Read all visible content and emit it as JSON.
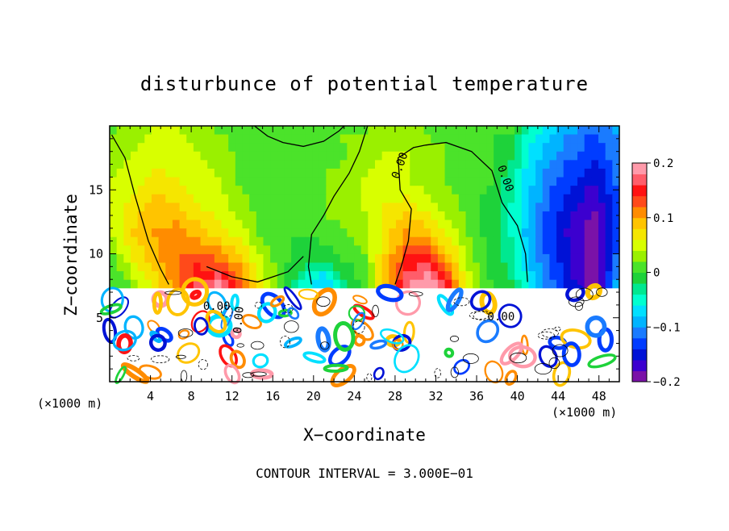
{
  "chart_data": {
    "type": "heatmap",
    "title": "disturbunce of potential temperature",
    "xlabel": "X−coordinate",
    "ylabel": "Z−coordinate",
    "x_unit_left": "(×1000 m)",
    "x_unit_right": "(×1000 m)",
    "footer": "CONTOUR INTERVAL = 3.000E−01",
    "xlim": [
      0,
      50
    ],
    "ylim": [
      0,
      20
    ],
    "x_ticks": [
      4,
      8,
      12,
      16,
      20,
      24,
      28,
      32,
      36,
      40,
      44,
      48
    ],
    "y_ticks": [
      5,
      10,
      15
    ],
    "colorbar": {
      "range": [
        -0.2,
        0.2
      ],
      "tick_labels": [
        "0.2",
        "0.1",
        "0",
        "−0.1",
        "−0.2"
      ],
      "tick_values": [
        0.2,
        0.1,
        0,
        -0.1,
        -0.2
      ],
      "colors": [
        "#7a12a8",
        "#3c00cf",
        "#0012d6",
        "#003cff",
        "#1a7bff",
        "#00b4ff",
        "#00e0ff",
        "#00ffd0",
        "#00e890",
        "#1ed23a",
        "#4be32a",
        "#9af000",
        "#d8ff00",
        "#f5e600",
        "#ffc400",
        "#ff8c00",
        "#ff4a1a",
        "#ff1212",
        "#ff5d6a",
        "#ff9aaa"
      ]
    },
    "contour_labels": [
      "0.00",
      "0.00",
      "0.00",
      "0.00",
      "0.00"
    ],
    "upper_field": [
      [
        0.02,
        0.03,
        0.04,
        0.04,
        0.03,
        0.02,
        0.01,
        0.0,
        0.0,
        0.0,
        0.01,
        0.02,
        0.02,
        0.03,
        0.03,
        0.02,
        0.01,
        0.01,
        0.0,
        0.0,
        -0.05,
        -0.08,
        -0.1,
        -0.12,
        -0.1
      ],
      [
        0.03,
        0.04,
        0.05,
        0.05,
        0.04,
        0.03,
        0.02,
        0.01,
        0.0,
        0.01,
        0.01,
        0.02,
        0.03,
        0.04,
        0.04,
        0.03,
        0.02,
        0.01,
        0.0,
        -0.02,
        -0.07,
        -0.1,
        -0.12,
        -0.14,
        -0.11
      ],
      [
        0.04,
        0.05,
        0.07,
        0.06,
        0.05,
        0.04,
        0.02,
        0.01,
        0.0,
        0.01,
        0.02,
        0.03,
        0.04,
        0.05,
        0.04,
        0.03,
        0.02,
        0.01,
        0.0,
        -0.03,
        -0.08,
        -0.12,
        -0.14,
        -0.16,
        -0.12
      ],
      [
        0.05,
        0.07,
        0.09,
        0.08,
        0.06,
        0.05,
        0.03,
        0.01,
        0.0,
        0.01,
        0.02,
        0.03,
        0.04,
        0.06,
        0.07,
        0.05,
        0.03,
        0.01,
        -0.01,
        -0.04,
        -0.09,
        -0.13,
        -0.16,
        -0.18,
        -0.13
      ],
      [
        0.04,
        0.08,
        0.1,
        0.11,
        0.09,
        0.07,
        0.05,
        0.02,
        0.0,
        0.0,
        0.01,
        0.02,
        0.03,
        0.07,
        0.1,
        0.09,
        0.05,
        0.02,
        -0.01,
        -0.04,
        -0.1,
        -0.14,
        -0.17,
        -0.19,
        -0.13
      ],
      [
        0.02,
        0.06,
        0.09,
        0.12,
        0.13,
        0.12,
        0.09,
        0.04,
        0.01,
        -0.01,
        -0.02,
        0.0,
        0.02,
        0.08,
        0.14,
        0.15,
        0.09,
        0.03,
        -0.01,
        -0.03,
        -0.09,
        -0.13,
        -0.17,
        -0.2,
        -0.12
      ],
      [
        0.0,
        0.03,
        0.07,
        0.11,
        0.16,
        0.18,
        0.13,
        0.06,
        0.01,
        -0.04,
        -0.08,
        -0.03,
        0.01,
        0.09,
        0.17,
        0.2,
        0.14,
        0.05,
        0.0,
        -0.02,
        -0.07,
        -0.12,
        -0.16,
        -0.19,
        -0.1
      ]
    ],
    "lower_band_z_range": [
      0,
      7.3
    ],
    "upper_band_z_range": [
      7.3,
      20
    ]
  }
}
